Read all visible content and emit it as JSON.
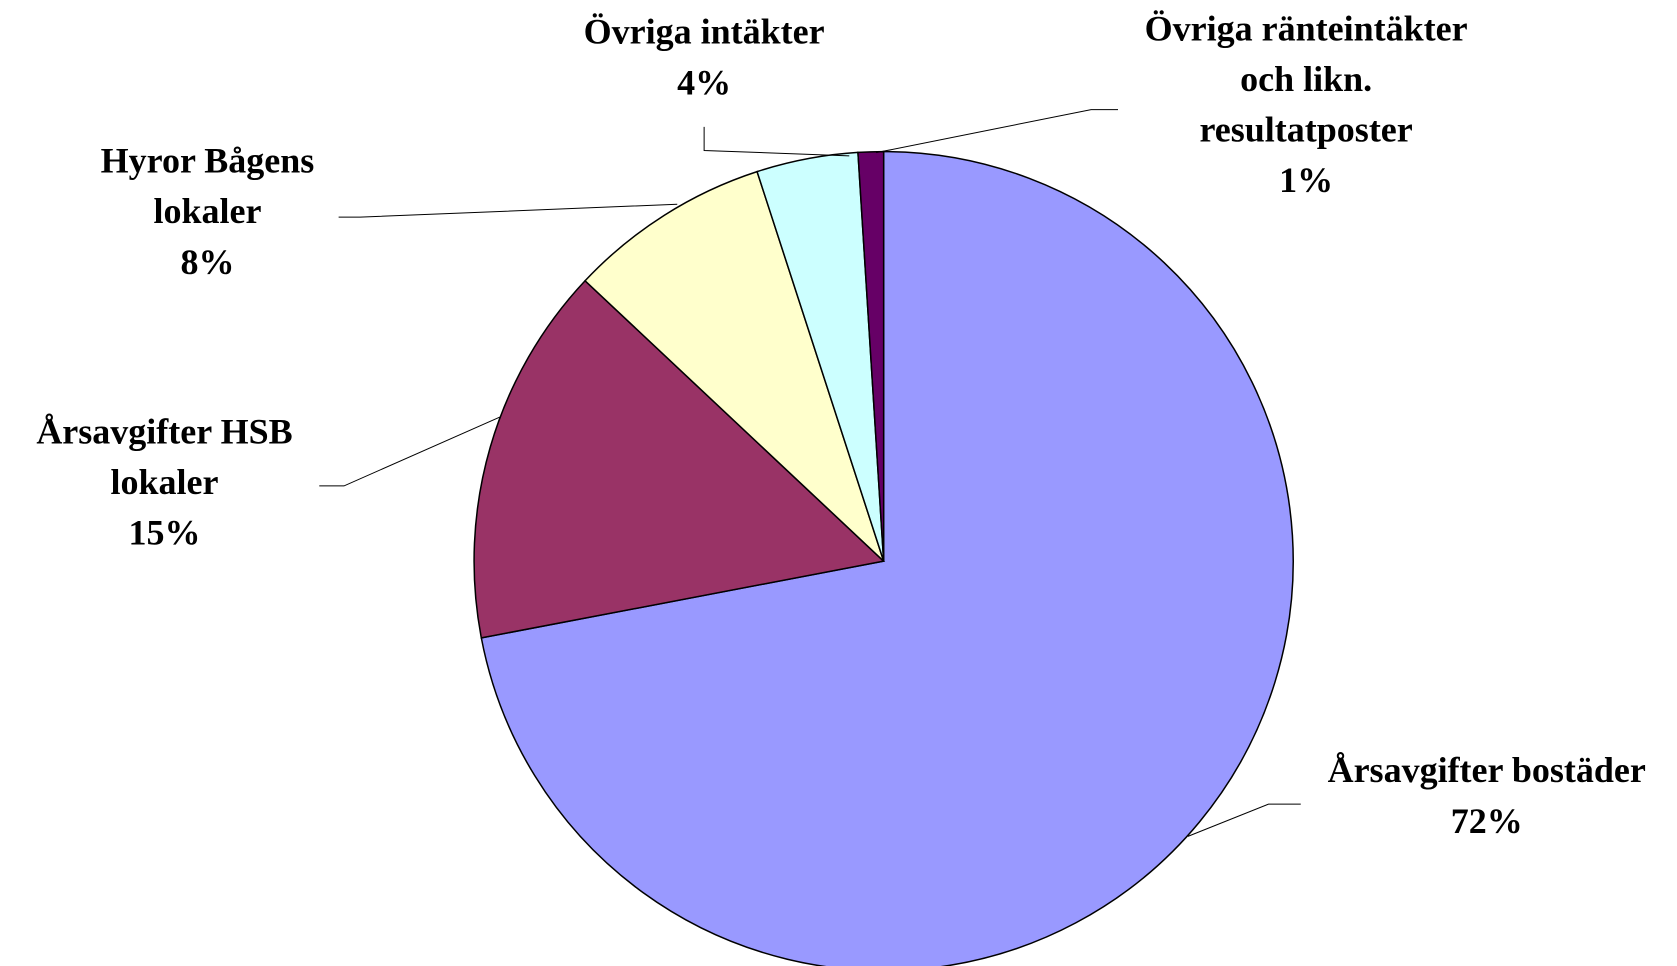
{
  "chart_data": {
    "type": "pie",
    "categories": [
      "Årsavgifter bostäder",
      "Årsavgifter HSB\nlokaler",
      "Hyror Bågens\nlokaler",
      "Övriga intäkter",
      "Övriga ränteintäkter\noch likn.\nresultatposter"
    ],
    "values": [
      72,
      15,
      8,
      4,
      1
    ],
    "value_labels": [
      "72%",
      "15%",
      "8%",
      "4%",
      "1%"
    ],
    "colors": [
      "#9999FF",
      "#993366",
      "#FFFFCC",
      "#CCFFFF",
      "#660066"
    ]
  }
}
